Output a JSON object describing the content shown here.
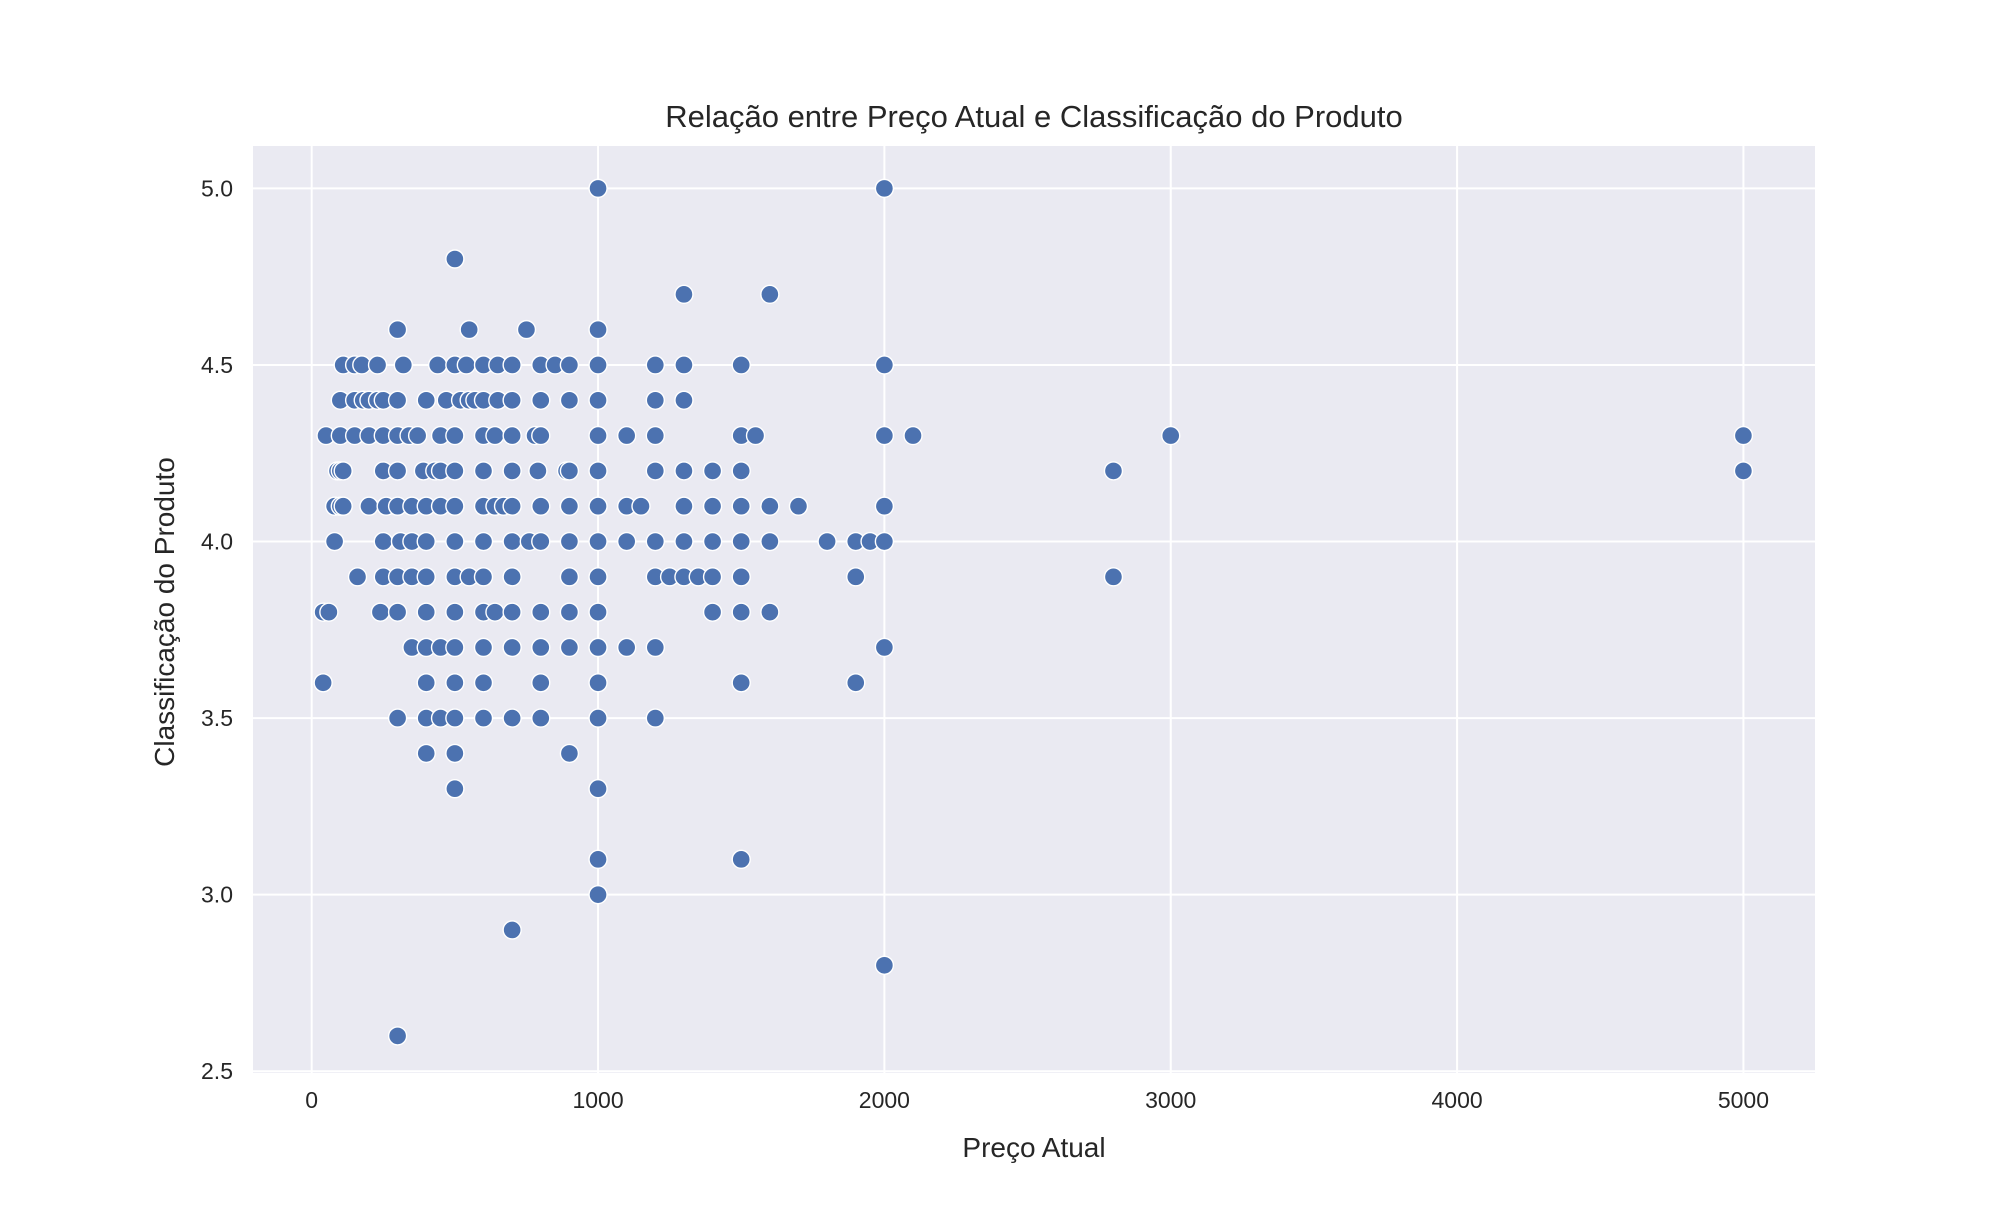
{
  "chart_data": {
    "type": "scatter",
    "title": "Relação entre Preço Atual e Classificação do Produto",
    "xlabel": "Preço Atual",
    "ylabel": "Classificação do Produto",
    "xlim": [
      -205,
      5250
    ],
    "ylim": [
      2.495,
      5.12
    ],
    "x_ticks": [
      0,
      1000,
      2000,
      3000,
      4000,
      5000
    ],
    "y_ticks": [
      2.5,
      3.0,
      3.5,
      4.0,
      4.5,
      5.0
    ],
    "x_tick_labels": [
      "0",
      "1000",
      "2000",
      "3000",
      "4000",
      "5000"
    ],
    "y_tick_labels": [
      "2.5",
      "3.0",
      "3.5",
      "4.0",
      "4.5",
      "5.0"
    ],
    "grid": true,
    "legend": "none",
    "colors": {
      "point": "#4c72b0",
      "point_edge": "#ffffff",
      "plot_background": "#eaeaf2",
      "grid": "#ffffff"
    },
    "points": [
      [
        1000,
        5.0
      ],
      [
        2000,
        5.0
      ],
      [
        500,
        4.8
      ],
      [
        1300,
        4.7
      ],
      [
        1600,
        4.7
      ],
      [
        300,
        4.6
      ],
      [
        550,
        4.6
      ],
      [
        750,
        4.6
      ],
      [
        1000,
        4.6
      ],
      [
        110,
        4.5
      ],
      [
        150,
        4.5
      ],
      [
        175,
        4.5
      ],
      [
        230,
        4.5
      ],
      [
        320,
        4.5
      ],
      [
        440,
        4.5
      ],
      [
        500,
        4.5
      ],
      [
        540,
        4.5
      ],
      [
        600,
        4.5
      ],
      [
        650,
        4.5
      ],
      [
        700,
        4.5
      ],
      [
        800,
        4.5
      ],
      [
        850,
        4.5
      ],
      [
        900,
        4.5
      ],
      [
        1000,
        4.5
      ],
      [
        1200,
        4.5
      ],
      [
        1300,
        4.5
      ],
      [
        1500,
        4.5
      ],
      [
        2000,
        4.5
      ],
      [
        100,
        4.4
      ],
      [
        150,
        4.4
      ],
      [
        180,
        4.4
      ],
      [
        200,
        4.4
      ],
      [
        230,
        4.4
      ],
      [
        250,
        4.4
      ],
      [
        300,
        4.4
      ],
      [
        400,
        4.4
      ],
      [
        470,
        4.4
      ],
      [
        520,
        4.4
      ],
      [
        550,
        4.4
      ],
      [
        570,
        4.4
      ],
      [
        600,
        4.4
      ],
      [
        650,
        4.4
      ],
      [
        700,
        4.4
      ],
      [
        800,
        4.4
      ],
      [
        900,
        4.4
      ],
      [
        1000,
        4.4
      ],
      [
        1200,
        4.4
      ],
      [
        1300,
        4.4
      ],
      [
        50,
        4.3
      ],
      [
        100,
        4.3
      ],
      [
        150,
        4.3
      ],
      [
        200,
        4.3
      ],
      [
        250,
        4.3
      ],
      [
        300,
        4.3
      ],
      [
        340,
        4.3
      ],
      [
        370,
        4.3
      ],
      [
        450,
        4.3
      ],
      [
        500,
        4.3
      ],
      [
        600,
        4.3
      ],
      [
        640,
        4.3
      ],
      [
        700,
        4.3
      ],
      [
        780,
        4.3
      ],
      [
        800,
        4.3
      ],
      [
        1000,
        4.3
      ],
      [
        1100,
        4.3
      ],
      [
        1200,
        4.3
      ],
      [
        1500,
        4.3
      ],
      [
        1550,
        4.3
      ],
      [
        2000,
        4.3
      ],
      [
        2100,
        4.3
      ],
      [
        3000,
        4.3
      ],
      [
        5000,
        4.3
      ],
      [
        90,
        4.2
      ],
      [
        100,
        4.2
      ],
      [
        110,
        4.2
      ],
      [
        250,
        4.2
      ],
      [
        300,
        4.2
      ],
      [
        390,
        4.2
      ],
      [
        430,
        4.2
      ],
      [
        450,
        4.2
      ],
      [
        500,
        4.2
      ],
      [
        600,
        4.2
      ],
      [
        700,
        4.2
      ],
      [
        790,
        4.2
      ],
      [
        890,
        4.2
      ],
      [
        900,
        4.2
      ],
      [
        1000,
        4.2
      ],
      [
        1200,
        4.2
      ],
      [
        1300,
        4.2
      ],
      [
        1400,
        4.2
      ],
      [
        1500,
        4.2
      ],
      [
        2800,
        4.2
      ],
      [
        5000,
        4.2
      ],
      [
        80,
        4.1
      ],
      [
        100,
        4.1
      ],
      [
        110,
        4.1
      ],
      [
        200,
        4.1
      ],
      [
        260,
        4.1
      ],
      [
        300,
        4.1
      ],
      [
        350,
        4.1
      ],
      [
        400,
        4.1
      ],
      [
        450,
        4.1
      ],
      [
        500,
        4.1
      ],
      [
        600,
        4.1
      ],
      [
        640,
        4.1
      ],
      [
        670,
        4.1
      ],
      [
        700,
        4.1
      ],
      [
        800,
        4.1
      ],
      [
        900,
        4.1
      ],
      [
        1000,
        4.1
      ],
      [
        1100,
        4.1
      ],
      [
        1150,
        4.1
      ],
      [
        1300,
        4.1
      ],
      [
        1400,
        4.1
      ],
      [
        1500,
        4.1
      ],
      [
        1600,
        4.1
      ],
      [
        1700,
        4.1
      ],
      [
        2000,
        4.1
      ],
      [
        80,
        4.0
      ],
      [
        250,
        4.0
      ],
      [
        310,
        4.0
      ],
      [
        350,
        4.0
      ],
      [
        400,
        4.0
      ],
      [
        500,
        4.0
      ],
      [
        600,
        4.0
      ],
      [
        700,
        4.0
      ],
      [
        760,
        4.0
      ],
      [
        800,
        4.0
      ],
      [
        900,
        4.0
      ],
      [
        1000,
        4.0
      ],
      [
        1100,
        4.0
      ],
      [
        1200,
        4.0
      ],
      [
        1300,
        4.0
      ],
      [
        1400,
        4.0
      ],
      [
        1500,
        4.0
      ],
      [
        1600,
        4.0
      ],
      [
        1800,
        4.0
      ],
      [
        1900,
        4.0
      ],
      [
        1950,
        4.0
      ],
      [
        2000,
        4.0
      ],
      [
        160,
        3.9
      ],
      [
        250,
        3.9
      ],
      [
        300,
        3.9
      ],
      [
        350,
        3.9
      ],
      [
        400,
        3.9
      ],
      [
        500,
        3.9
      ],
      [
        550,
        3.9
      ],
      [
        600,
        3.9
      ],
      [
        700,
        3.9
      ],
      [
        900,
        3.9
      ],
      [
        1000,
        3.9
      ],
      [
        1200,
        3.9
      ],
      [
        1250,
        3.9
      ],
      [
        1300,
        3.9
      ],
      [
        1350,
        3.9
      ],
      [
        1400,
        3.9
      ],
      [
        1500,
        3.9
      ],
      [
        1900,
        3.9
      ],
      [
        2800,
        3.9
      ],
      [
        40,
        3.8
      ],
      [
        60,
        3.8
      ],
      [
        240,
        3.8
      ],
      [
        300,
        3.8
      ],
      [
        400,
        3.8
      ],
      [
        500,
        3.8
      ],
      [
        600,
        3.8
      ],
      [
        640,
        3.8
      ],
      [
        700,
        3.8
      ],
      [
        800,
        3.8
      ],
      [
        900,
        3.8
      ],
      [
        1000,
        3.8
      ],
      [
        1400,
        3.8
      ],
      [
        1500,
        3.8
      ],
      [
        1600,
        3.8
      ],
      [
        350,
        3.7
      ],
      [
        400,
        3.7
      ],
      [
        450,
        3.7
      ],
      [
        500,
        3.7
      ],
      [
        600,
        3.7
      ],
      [
        700,
        3.7
      ],
      [
        800,
        3.7
      ],
      [
        900,
        3.7
      ],
      [
        1000,
        3.7
      ],
      [
        1100,
        3.7
      ],
      [
        1200,
        3.7
      ],
      [
        2000,
        3.7
      ],
      [
        40,
        3.6
      ],
      [
        400,
        3.6
      ],
      [
        500,
        3.6
      ],
      [
        600,
        3.6
      ],
      [
        800,
        3.6
      ],
      [
        1000,
        3.6
      ],
      [
        1500,
        3.6
      ],
      [
        1900,
        3.6
      ],
      [
        300,
        3.5
      ],
      [
        400,
        3.5
      ],
      [
        450,
        3.5
      ],
      [
        500,
        3.5
      ],
      [
        600,
        3.5
      ],
      [
        700,
        3.5
      ],
      [
        800,
        3.5
      ],
      [
        1000,
        3.5
      ],
      [
        1200,
        3.5
      ],
      [
        400,
        3.4
      ],
      [
        500,
        3.4
      ],
      [
        900,
        3.4
      ],
      [
        500,
        3.3
      ],
      [
        1000,
        3.3
      ],
      [
        1000,
        3.1
      ],
      [
        1500,
        3.1
      ],
      [
        1000,
        3.0
      ],
      [
        700,
        2.9
      ],
      [
        2000,
        2.8
      ],
      [
        300,
        2.6
      ]
    ]
  }
}
